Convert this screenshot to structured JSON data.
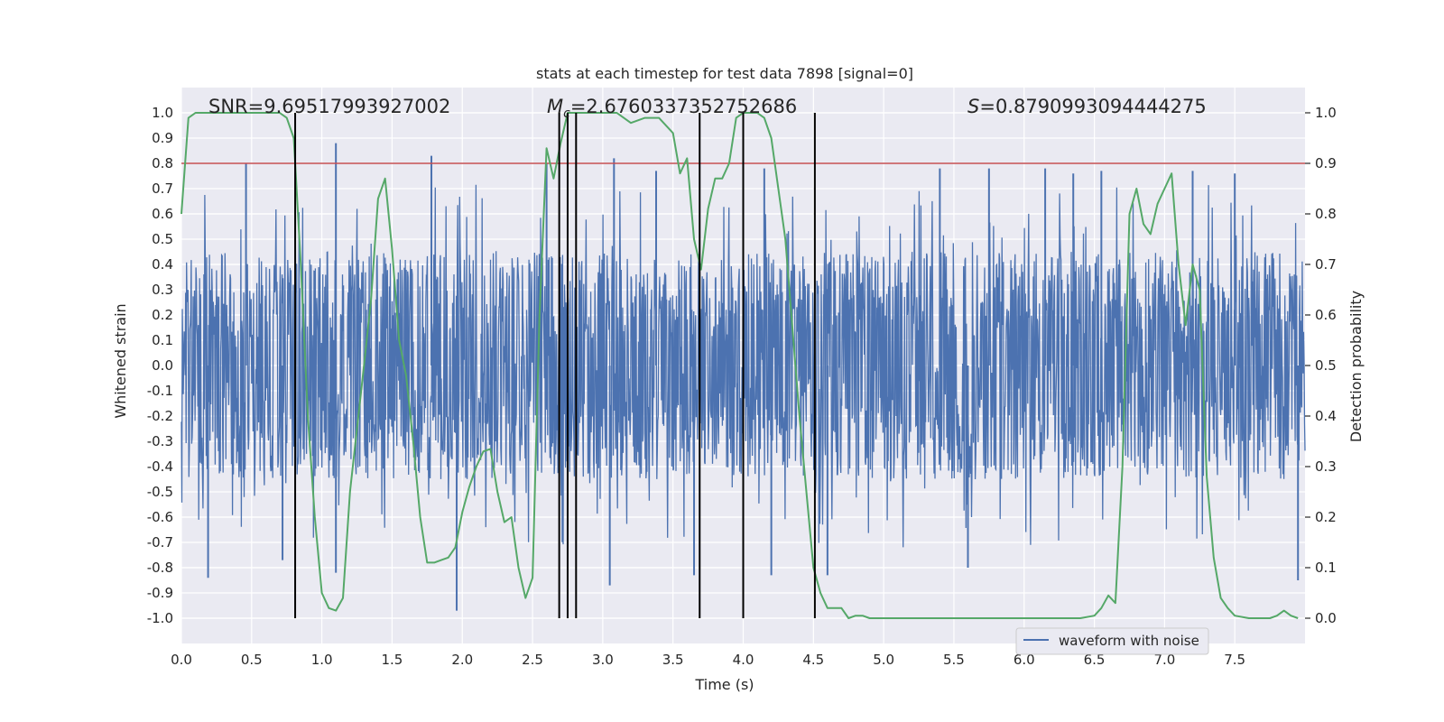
{
  "chart_data": {
    "type": "line",
    "title": "stats at each timestep for test data 7898 [signal=0]",
    "xlabel": "Time (s)",
    "ylabel_left": "Whitened strain",
    "ylabel_right": "Detection probability",
    "xlim": [
      0.0,
      8.0
    ],
    "ylim_left": [
      -1.1,
      1.1
    ],
    "ylim_right": [
      -0.05,
      1.05
    ],
    "x_ticks": [
      "0.0",
      "0.5",
      "1.0",
      "1.5",
      "2.0",
      "2.5",
      "3.0",
      "3.5",
      "4.0",
      "4.5",
      "5.0",
      "5.5",
      "6.0",
      "6.5",
      "7.0",
      "7.5"
    ],
    "y_ticks_left": [
      "1.0",
      "0.9",
      "0.8",
      "0.7",
      "0.6",
      "0.5",
      "0.4",
      "0.3",
      "0.2",
      "0.1",
      "0.0",
      "-0.1",
      "-0.2",
      "-0.3",
      "-0.4",
      "-0.5",
      "-0.6",
      "-0.7",
      "-0.8",
      "-0.9",
      "-1.0"
    ],
    "y_ticks_right": [
      "1.0",
      "0.9",
      "0.8",
      "0.7",
      "0.6",
      "0.5",
      "0.4",
      "0.3",
      "0.2",
      "0.1",
      "0.0"
    ],
    "annotations": {
      "snr": "SNR=9.69517993927002",
      "mc_symbol": "M",
      "mc_sub": "c",
      "mc_value": "=2.6760337352752686",
      "s_symbol": "S",
      "s_value": "=0.8790993094444275"
    },
    "threshold": 0.9,
    "trigger_times": [
      0.81,
      2.69,
      2.75,
      2.81,
      3.69,
      4.0,
      4.51
    ],
    "legend": {
      "label": "waveform with noise",
      "location": "lower-right"
    },
    "waveform": {
      "name": "waveform with noise",
      "duration_s": 8.0,
      "typical_envelope": [
        -0.45,
        0.45
      ],
      "positive_peaks": [
        [
          0.46,
          0.8
        ],
        [
          1.1,
          0.88
        ],
        [
          1.78,
          0.83
        ],
        [
          2.6,
          0.8
        ],
        [
          3.08,
          0.82
        ],
        [
          3.38,
          0.77
        ],
        [
          4.15,
          0.78
        ],
        [
          5.4,
          0.78
        ],
        [
          5.75,
          0.78
        ],
        [
          6.15,
          0.78
        ],
        [
          6.35,
          0.76
        ],
        [
          6.55,
          0.77
        ],
        [
          7.2,
          0.77
        ],
        [
          7.5,
          0.76
        ]
      ],
      "negative_peaks": [
        [
          0.19,
          -0.84
        ],
        [
          0.72,
          -0.77
        ],
        [
          1.1,
          -0.82
        ],
        [
          1.96,
          -0.97
        ],
        [
          3.05,
          -0.87
        ],
        [
          3.65,
          -0.83
        ],
        [
          4.2,
          -0.83
        ],
        [
          4.6,
          -0.83
        ],
        [
          5.6,
          -0.8
        ],
        [
          7.95,
          -0.85
        ]
      ]
    },
    "series": [
      {
        "name": "detection probability",
        "color": "#55a868",
        "axis": "right",
        "x": [
          0.0,
          0.05,
          0.1,
          0.2,
          0.3,
          0.4,
          0.5,
          0.6,
          0.7,
          0.75,
          0.8,
          0.85,
          0.9,
          0.95,
          1.0,
          1.05,
          1.1,
          1.15,
          1.2,
          1.3,
          1.35,
          1.4,
          1.45,
          1.5,
          1.55,
          1.6,
          1.65,
          1.7,
          1.75,
          1.8,
          1.85,
          1.9,
          1.95,
          2.0,
          2.05,
          2.1,
          2.15,
          2.2,
          2.25,
          2.3,
          2.35,
          2.4,
          2.45,
          2.5,
          2.55,
          2.6,
          2.65,
          2.7,
          2.75,
          2.8,
          2.85,
          2.9,
          2.95,
          3.0,
          3.1,
          3.2,
          3.3,
          3.4,
          3.5,
          3.55,
          3.6,
          3.65,
          3.7,
          3.75,
          3.8,
          3.85,
          3.9,
          3.95,
          4.0,
          4.05,
          4.1,
          4.15,
          4.2,
          4.3,
          4.4,
          4.45,
          4.5,
          4.55,
          4.6,
          4.65,
          4.7,
          4.75,
          4.8,
          4.85,
          4.9,
          4.95,
          5.0,
          5.05,
          5.1,
          5.2,
          5.3,
          5.35,
          5.4,
          5.45,
          5.6,
          5.8,
          6.0,
          6.2,
          6.4,
          6.5,
          6.55,
          6.6,
          6.65,
          6.7,
          6.75,
          6.8,
          6.85,
          6.9,
          6.95,
          7.0,
          7.05,
          7.1,
          7.15,
          7.2,
          7.25,
          7.3,
          7.35,
          7.4,
          7.45,
          7.5,
          7.6,
          7.7,
          7.75,
          7.8,
          7.85,
          7.9,
          7.95
        ],
        "y": [
          0.8,
          0.99,
          1.0,
          1.0,
          1.0,
          1.0,
          1.0,
          1.0,
          1.0,
          0.99,
          0.95,
          0.7,
          0.4,
          0.2,
          0.05,
          0.02,
          0.015,
          0.04,
          0.25,
          0.5,
          0.63,
          0.83,
          0.87,
          0.73,
          0.55,
          0.48,
          0.35,
          0.2,
          0.11,
          0.11,
          0.115,
          0.12,
          0.14,
          0.21,
          0.26,
          0.3,
          0.33,
          0.335,
          0.25,
          0.19,
          0.2,
          0.1,
          0.04,
          0.08,
          0.6,
          0.93,
          0.87,
          0.94,
          1.0,
          1.0,
          1.0,
          1.0,
          1.0,
          1.0,
          1.0,
          0.98,
          0.99,
          0.99,
          0.96,
          0.88,
          0.91,
          0.75,
          0.69,
          0.81,
          0.87,
          0.87,
          0.9,
          0.99,
          1.0,
          1.0,
          1.0,
          0.99,
          0.95,
          0.75,
          0.4,
          0.25,
          0.1,
          0.05,
          0.02,
          0.02,
          0.02,
          0.0,
          0.005,
          0.005,
          0.0,
          0.0,
          0.0,
          0.0,
          0.0,
          0.0,
          0.0,
          0.0,
          0.0,
          0.0,
          0.0,
          0.0,
          0.0,
          0.0,
          0.0,
          0.005,
          0.02,
          0.045,
          0.03,
          0.3,
          0.8,
          0.85,
          0.78,
          0.76,
          0.82,
          0.85,
          0.88,
          0.7,
          0.58,
          0.7,
          0.65,
          0.28,
          0.12,
          0.04,
          0.02,
          0.005,
          0.0,
          0.0,
          0.0,
          0.005,
          0.015,
          0.005,
          0.0
        ]
      },
      {
        "name": "threshold",
        "color": "#c44e52",
        "axis": "right",
        "x": [
          0.0,
          8.0
        ],
        "y": [
          0.9,
          0.9
        ]
      }
    ]
  },
  "colors": {
    "background": "#eaeaf2",
    "grid": "#ffffff",
    "waveform": "#4c72b0",
    "probability": "#55a868",
    "threshold": "#c44e52",
    "trigger": "#000000"
  }
}
